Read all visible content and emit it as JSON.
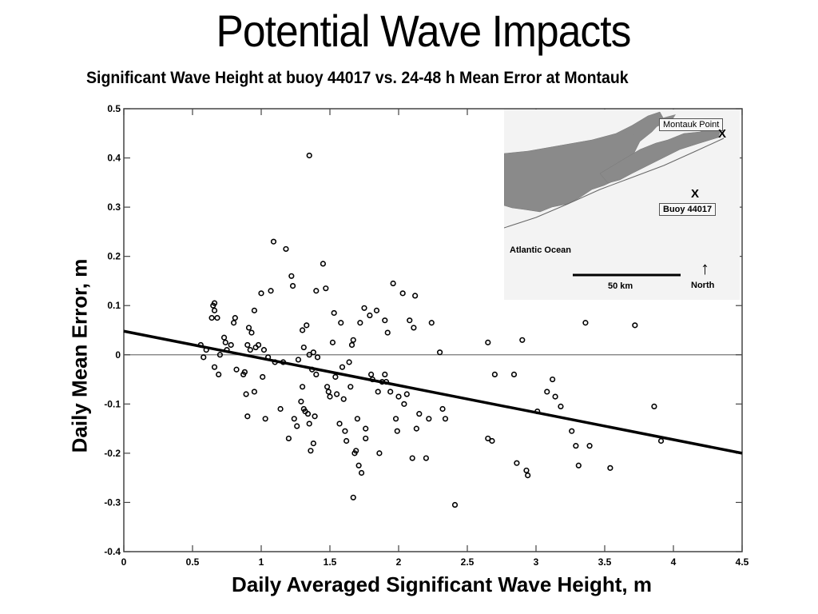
{
  "page": {
    "title": "Potential Wave Impacts",
    "subtitle": "Significant Wave Height at buoy 44017 vs. 24-48 h Mean Error at Montauk"
  },
  "chart_data": {
    "type": "scatter",
    "title": "Significant Wave Height at buoy 44017 vs. 24-48 h Mean Error at Montauk",
    "xlabel": "Daily Averaged Significant Wave Height, m",
    "ylabel": "Daily Mean Error, m",
    "xlim": [
      0,
      4.5
    ],
    "ylim": [
      -0.4,
      0.5
    ],
    "xticks": [
      "0",
      "0.5",
      "1",
      "1.5",
      "2",
      "2.5",
      "3",
      "3.5",
      "4",
      "4.5"
    ],
    "yticks": [
      "0.5",
      "0.4",
      "0.3",
      "0.2",
      "0.1",
      "0",
      "-0.1",
      "-0.2",
      "-0.3",
      "-0.4"
    ],
    "grid": false,
    "zero_line": true,
    "trend_line": {
      "x": [
        0,
        4.5
      ],
      "y": [
        0.048,
        -0.2
      ]
    },
    "series": [
      {
        "name": "daily",
        "marker": "circle-open",
        "points": [
          [
            0.56,
            0.02
          ],
          [
            0.58,
            -0.005
          ],
          [
            0.6,
            0.01
          ],
          [
            0.64,
            0.075
          ],
          [
            0.65,
            0.1
          ],
          [
            0.66,
            0.105
          ],
          [
            0.66,
            0.09
          ],
          [
            0.68,
            0.075
          ],
          [
            0.66,
            -0.025
          ],
          [
            0.69,
            -0.04
          ],
          [
            0.7,
            0.0
          ],
          [
            0.73,
            0.035
          ],
          [
            0.74,
            0.025
          ],
          [
            0.75,
            0.01
          ],
          [
            0.78,
            0.02
          ],
          [
            0.8,
            0.065
          ],
          [
            0.81,
            0.075
          ],
          [
            0.82,
            -0.03
          ],
          [
            0.87,
            -0.04
          ],
          [
            0.88,
            -0.035
          ],
          [
            0.89,
            -0.08
          ],
          [
            0.9,
            0.02
          ],
          [
            0.9,
            -0.125
          ],
          [
            0.91,
            0.055
          ],
          [
            0.92,
            0.01
          ],
          [
            0.93,
            0.045
          ],
          [
            0.95,
            0.09
          ],
          [
            0.95,
            -0.075
          ],
          [
            0.96,
            0.015
          ],
          [
            0.98,
            0.02
          ],
          [
            1.0,
            0.125
          ],
          [
            1.01,
            -0.045
          ],
          [
            1.02,
            0.01
          ],
          [
            1.03,
            -0.13
          ],
          [
            1.05,
            -0.005
          ],
          [
            1.07,
            0.13
          ],
          [
            1.09,
            0.23
          ],
          [
            1.1,
            -0.015
          ],
          [
            1.14,
            -0.11
          ],
          [
            1.16,
            -0.015
          ],
          [
            1.18,
            0.215
          ],
          [
            1.2,
            -0.17
          ],
          [
            1.22,
            0.16
          ],
          [
            1.23,
            0.14
          ],
          [
            1.24,
            -0.13
          ],
          [
            1.26,
            -0.145
          ],
          [
            1.27,
            -0.01
          ],
          [
            1.29,
            -0.095
          ],
          [
            1.3,
            -0.065
          ],
          [
            1.3,
            0.05
          ],
          [
            1.31,
            -0.11
          ],
          [
            1.31,
            0.015
          ],
          [
            1.32,
            -0.115
          ],
          [
            1.33,
            0.06
          ],
          [
            1.34,
            -0.12
          ],
          [
            1.35,
            0.405
          ],
          [
            1.35,
            0.0
          ],
          [
            1.35,
            -0.14
          ],
          [
            1.36,
            -0.195
          ],
          [
            1.37,
            -0.03
          ],
          [
            1.38,
            0.005
          ],
          [
            1.38,
            -0.18
          ],
          [
            1.39,
            -0.125
          ],
          [
            1.4,
            0.13
          ],
          [
            1.4,
            -0.04
          ],
          [
            1.41,
            -0.005
          ],
          [
            1.45,
            0.185
          ],
          [
            1.47,
            0.135
          ],
          [
            1.48,
            -0.065
          ],
          [
            1.49,
            -0.075
          ],
          [
            1.5,
            -0.085
          ],
          [
            1.52,
            0.025
          ],
          [
            1.53,
            0.085
          ],
          [
            1.54,
            -0.045
          ],
          [
            1.55,
            -0.08
          ],
          [
            1.57,
            -0.14
          ],
          [
            1.58,
            0.065
          ],
          [
            1.59,
            -0.025
          ],
          [
            1.6,
            -0.09
          ],
          [
            1.61,
            -0.155
          ],
          [
            1.62,
            -0.175
          ],
          [
            1.64,
            -0.015
          ],
          [
            1.65,
            -0.065
          ],
          [
            1.66,
            0.02
          ],
          [
            1.67,
            -0.29
          ],
          [
            1.67,
            0.03
          ],
          [
            1.68,
            -0.2
          ],
          [
            1.69,
            -0.195
          ],
          [
            1.7,
            -0.13
          ],
          [
            1.71,
            -0.225
          ],
          [
            1.72,
            0.065
          ],
          [
            1.73,
            -0.24
          ],
          [
            1.75,
            0.095
          ],
          [
            1.76,
            -0.15
          ],
          [
            1.76,
            -0.17
          ],
          [
            1.79,
            0.08
          ],
          [
            1.8,
            -0.04
          ],
          [
            1.81,
            -0.05
          ],
          [
            1.84,
            0.09
          ],
          [
            1.85,
            -0.075
          ],
          [
            1.86,
            -0.2
          ],
          [
            1.88,
            -0.055
          ],
          [
            1.9,
            0.07
          ],
          [
            1.9,
            -0.04
          ],
          [
            1.91,
            -0.055
          ],
          [
            1.92,
            0.045
          ],
          [
            1.94,
            -0.075
          ],
          [
            1.96,
            0.145
          ],
          [
            1.98,
            -0.13
          ],
          [
            1.99,
            -0.155
          ],
          [
            2.0,
            -0.085
          ],
          [
            2.03,
            0.125
          ],
          [
            2.04,
            -0.1
          ],
          [
            2.06,
            -0.08
          ],
          [
            2.08,
            0.07
          ],
          [
            2.1,
            -0.21
          ],
          [
            2.11,
            0.055
          ],
          [
            2.12,
            0.12
          ],
          [
            2.13,
            -0.15
          ],
          [
            2.15,
            -0.12
          ],
          [
            2.2,
            -0.21
          ],
          [
            2.22,
            -0.13
          ],
          [
            2.24,
            0.065
          ],
          [
            2.3,
            0.005
          ],
          [
            2.32,
            -0.11
          ],
          [
            2.34,
            -0.13
          ],
          [
            2.41,
            -0.305
          ],
          [
            2.65,
            0.025
          ],
          [
            2.65,
            -0.17
          ],
          [
            2.68,
            -0.175
          ],
          [
            2.7,
            -0.04
          ],
          [
            2.84,
            -0.04
          ],
          [
            2.86,
            -0.22
          ],
          [
            2.9,
            0.03
          ],
          [
            2.93,
            -0.235
          ],
          [
            2.94,
            -0.245
          ],
          [
            3.01,
            -0.115
          ],
          [
            3.08,
            -0.075
          ],
          [
            3.12,
            -0.05
          ],
          [
            3.14,
            -0.085
          ],
          [
            3.18,
            -0.105
          ],
          [
            3.26,
            -0.155
          ],
          [
            3.29,
            -0.185
          ],
          [
            3.31,
            -0.225
          ],
          [
            3.36,
            0.065
          ],
          [
            3.39,
            -0.185
          ],
          [
            3.54,
            -0.23
          ],
          [
            3.72,
            0.06
          ],
          [
            3.86,
            -0.105
          ],
          [
            3.91,
            -0.175
          ]
        ]
      }
    ]
  },
  "inset_map": {
    "montauk_label": "Montauk Point",
    "buoy_label": "Buoy 44017",
    "ocean_label": "Atlantic Ocean",
    "scale_label": "50 km",
    "north_label": "North",
    "marker_symbol": "X",
    "north_arrow": "↑"
  }
}
